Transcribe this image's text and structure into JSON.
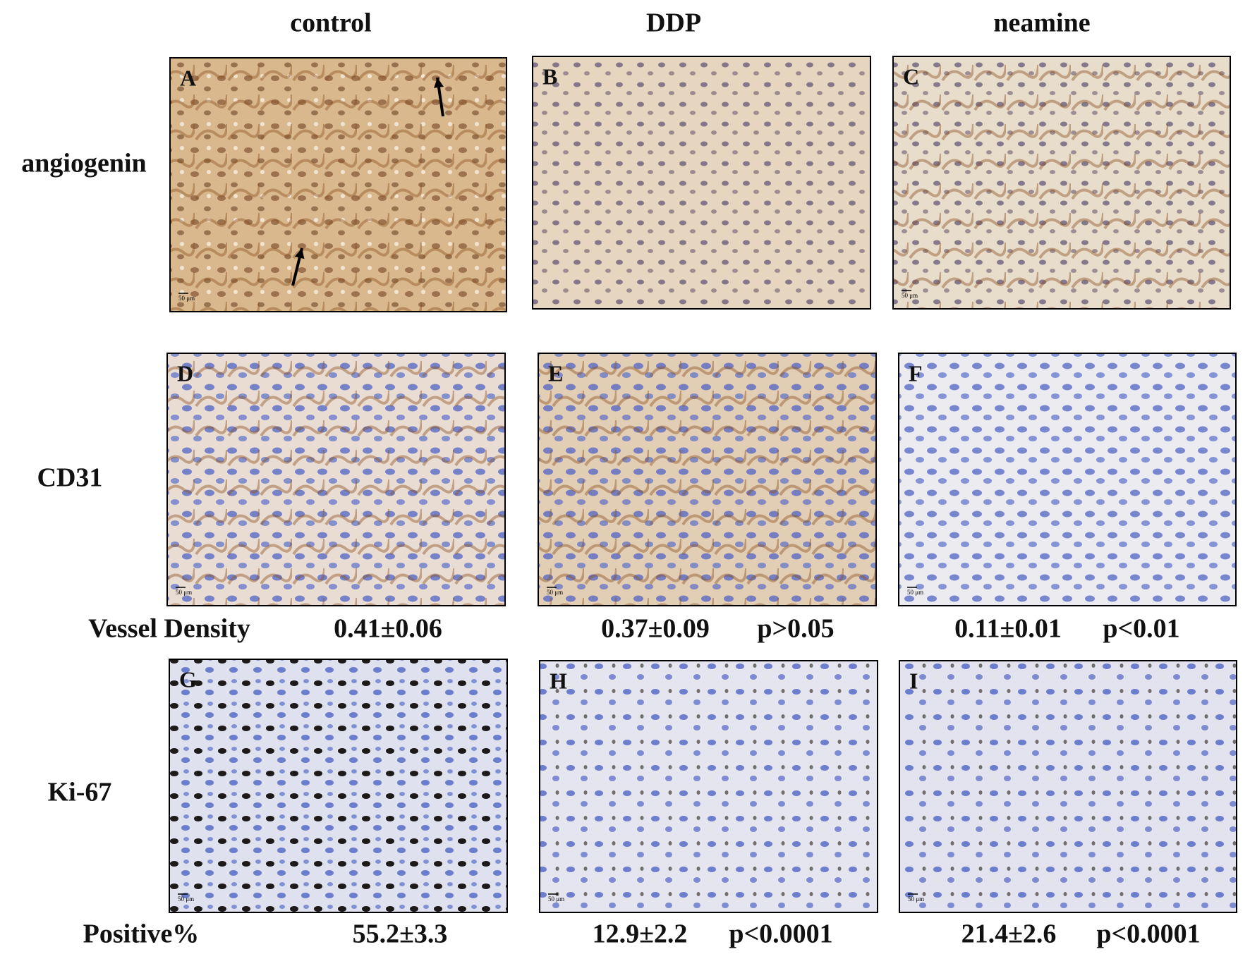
{
  "column_headers": [
    "control",
    "DDP",
    "neamine"
  ],
  "row_labels": [
    "angiogenin",
    "CD31",
    "Ki-67"
  ],
  "panels": [
    {
      "letter": "A",
      "scale": "50 μm"
    },
    {
      "letter": "B"
    },
    {
      "letter": "C",
      "scale": "50 μm"
    },
    {
      "letter": "D",
      "scale": "50 μm"
    },
    {
      "letter": "E",
      "scale": "50 μm"
    },
    {
      "letter": "F",
      "scale": "50 μm"
    },
    {
      "letter": "G",
      "scale": "50 μm"
    },
    {
      "letter": "H",
      "scale": "50 μm"
    },
    {
      "letter": "I",
      "scale": "50 μm"
    }
  ],
  "vessel_density": {
    "label": "Vessel Density",
    "stats": [
      {
        "value": "0.41±0.06"
      },
      {
        "value": "0.37±0.09",
        "p": "p>0.05"
      },
      {
        "value": "0.11±0.01",
        "p": "p<0.01"
      }
    ]
  },
  "ki67_positive": {
    "label": "Positive%",
    "stats": [
      {
        "value": "55.2±3.3"
      },
      {
        "value": "12.9±2.2",
        "p": "p<0.0001"
      },
      {
        "value": "21.4±2.6",
        "p": "p<0.0001"
      }
    ]
  }
}
